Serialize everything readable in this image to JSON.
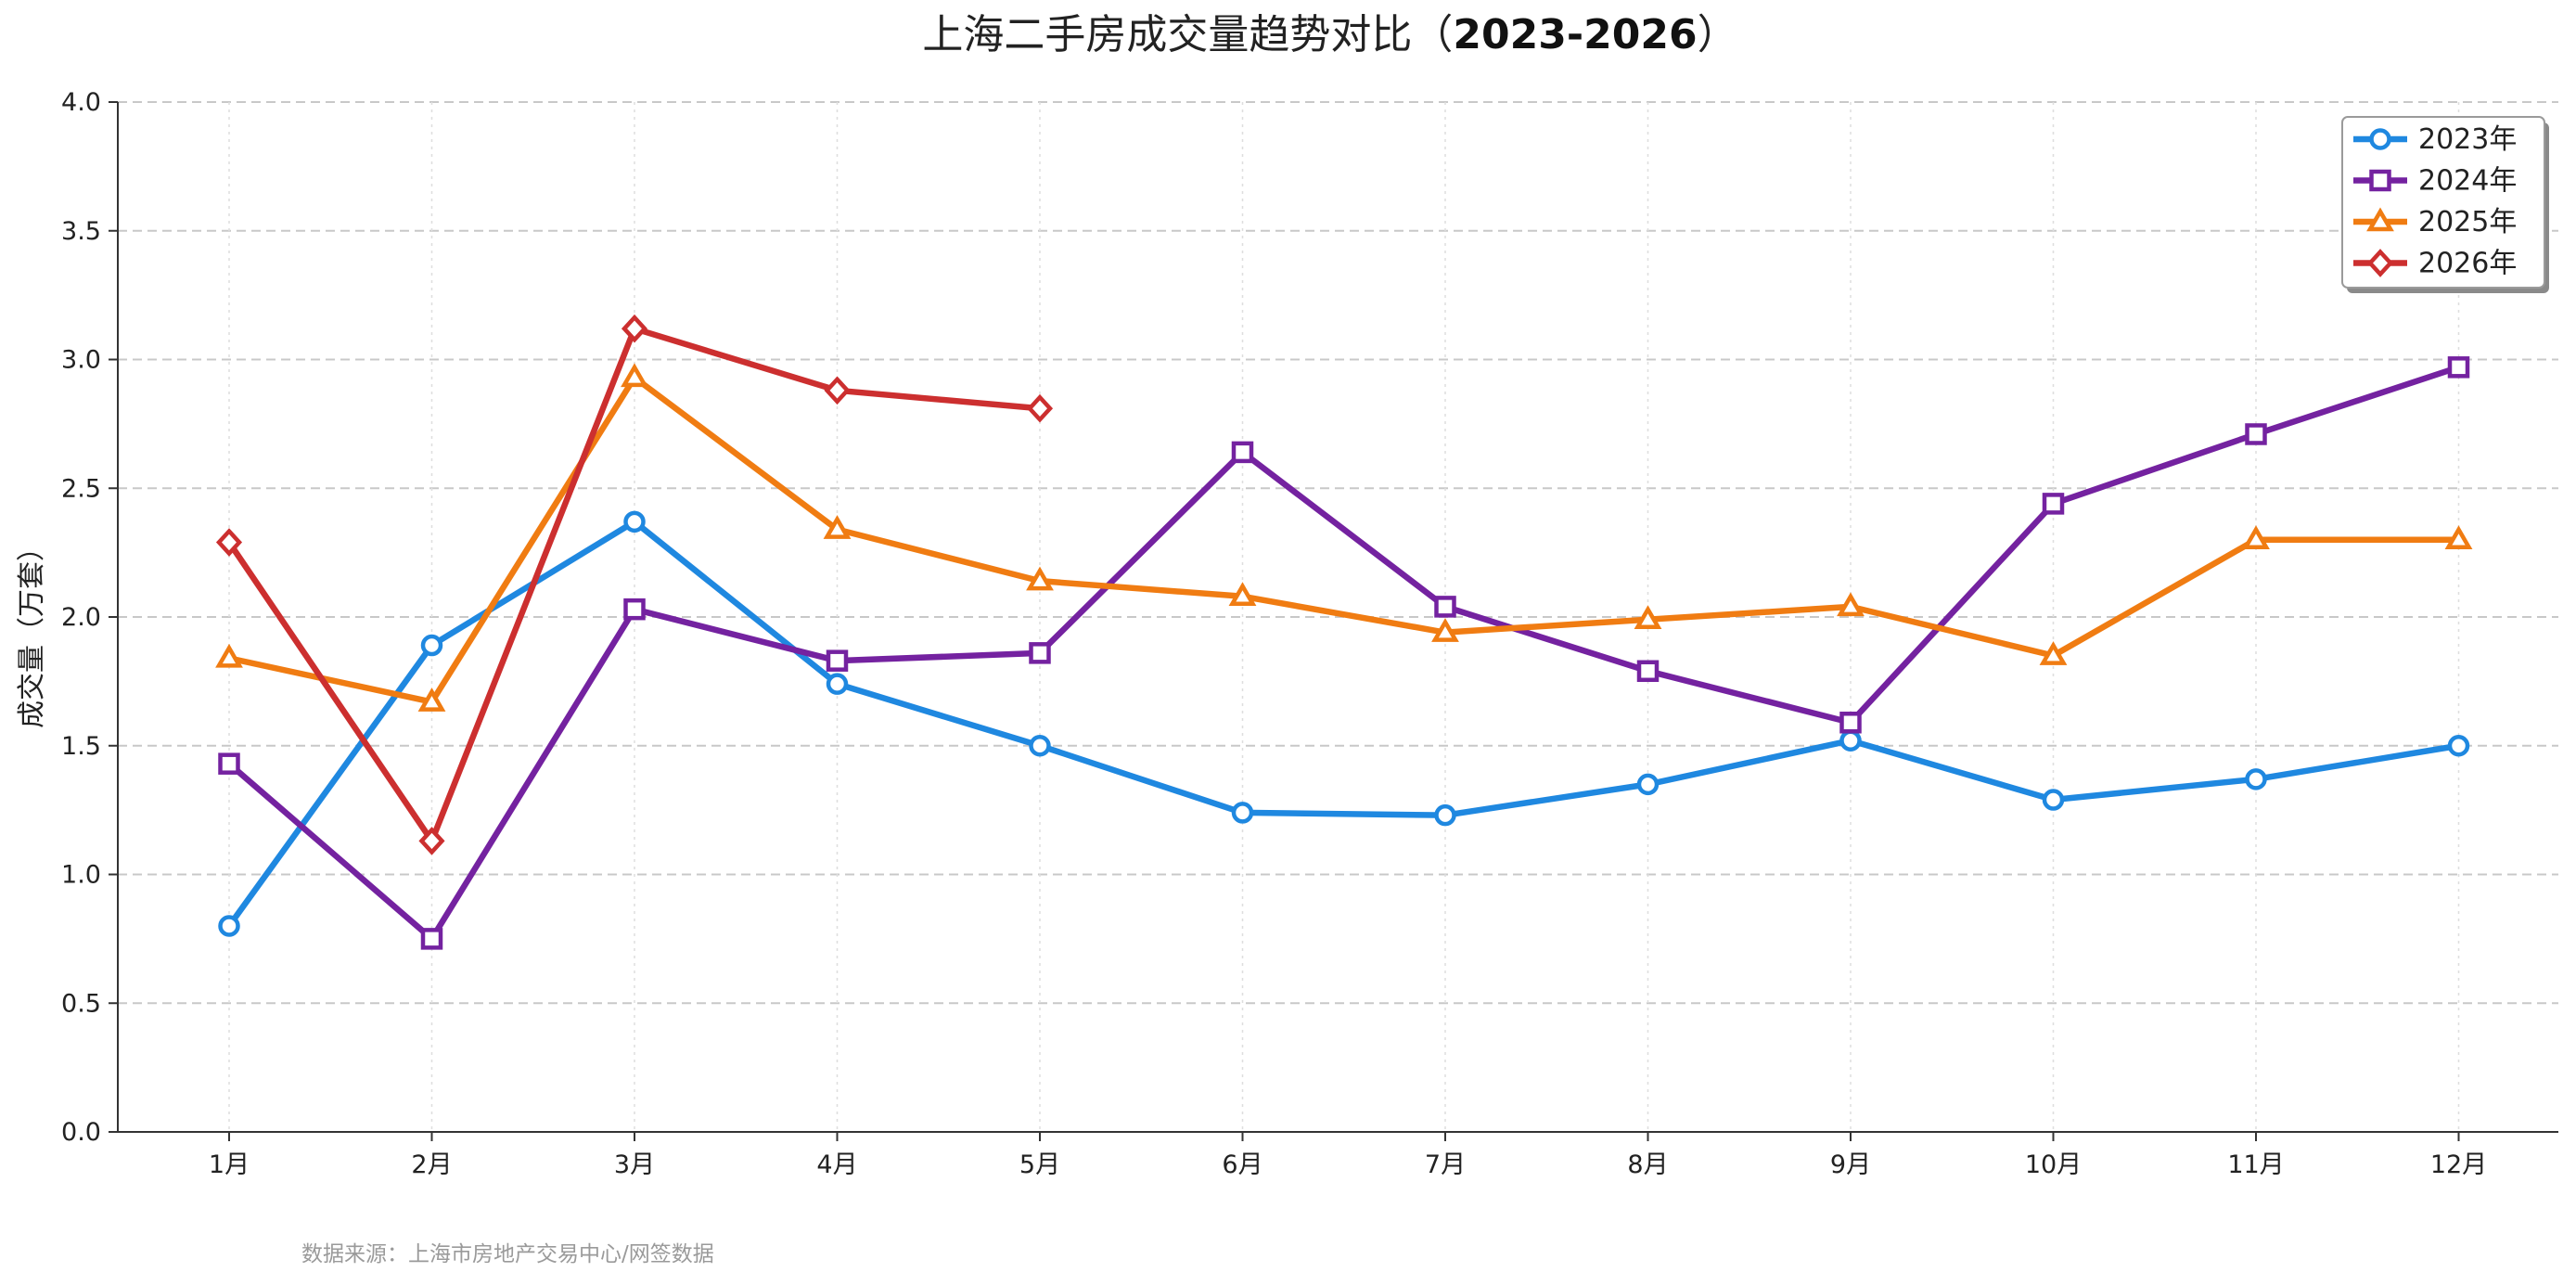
{
  "chart_data": {
    "type": "line",
    "title": "上海二手房成交量趋势对比（",
    "title_bold": "2023-2026",
    "title_close": "）",
    "xlabel": "",
    "ylabel": "成交量（万套）",
    "categories": [
      "1月",
      "2月",
      "3月",
      "4月",
      "5月",
      "6月",
      "7月",
      "8月",
      "9月",
      "10月",
      "11月",
      "12月"
    ],
    "ylim": [
      0,
      4.0
    ],
    "yticks": [
      "0.0",
      "0.5",
      "1.0",
      "1.5",
      "2.0",
      "2.5",
      "3.0",
      "3.5",
      "4.0"
    ],
    "grid": true,
    "legend_position": "top-right",
    "series": [
      {
        "name": "2023年",
        "color": "#1f88e0",
        "marker": "circle",
        "values": [
          0.8,
          1.89,
          2.37,
          1.74,
          1.5,
          1.24,
          1.23,
          1.35,
          1.52,
          1.29,
          1.37,
          1.5
        ]
      },
      {
        "name": "2024年",
        "color": "#7422a0",
        "marker": "square",
        "values": [
          1.43,
          0.75,
          2.03,
          1.83,
          1.86,
          2.64,
          2.04,
          1.79,
          1.59,
          2.44,
          2.71,
          2.97
        ]
      },
      {
        "name": "2025年",
        "color": "#f07c12",
        "marker": "triangle",
        "values": [
          1.84,
          1.67,
          2.93,
          2.34,
          2.14,
          2.08,
          1.94,
          1.99,
          2.04,
          1.85,
          2.3,
          2.3
        ]
      },
      {
        "name": "2026年",
        "color": "#cc2f2f",
        "marker": "diamond",
        "values": [
          2.29,
          1.13,
          3.12,
          2.88,
          2.81,
          null,
          null,
          null,
          null,
          null,
          null,
          null
        ]
      }
    ]
  },
  "source_note": "数据来源：上海市房地产交易中心/网签数据"
}
